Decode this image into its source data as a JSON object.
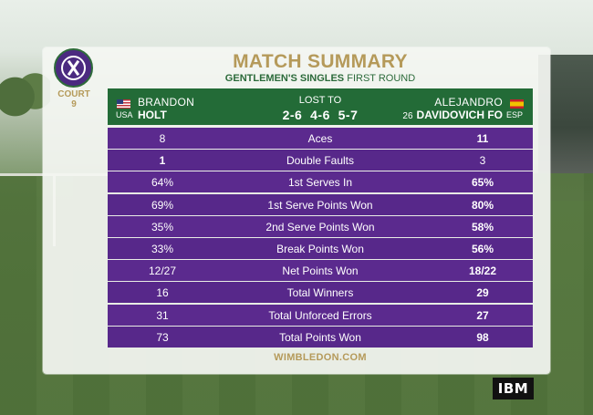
{
  "court": {
    "line1": "COURT",
    "line2": "9"
  },
  "title": "MATCH SUMMARY",
  "subtitle": {
    "event": "GENTLEMEN'S SINGLES",
    "round": "FIRST ROUND"
  },
  "players": {
    "left": {
      "first": "BRANDON",
      "last": "HOLT",
      "country": "USA",
      "flag": "usa-flag-icon"
    },
    "right": {
      "first": "ALEJANDRO",
      "seed": "26",
      "last": "DAVIDOVICH FO",
      "country": "ESP",
      "flag": "spain-flag-icon"
    }
  },
  "result": {
    "label": "LOST TO",
    "score": "2-6  4-6  5-7"
  },
  "stats": [
    {
      "label": "Aces",
      "left": "8",
      "right": "11",
      "left_bold": false,
      "right_bold": true
    },
    {
      "label": "Double Faults",
      "left": "1",
      "right": "3",
      "left_bold": true,
      "right_bold": false
    },
    {
      "label": "1st Serves In",
      "left": "64%",
      "right": "65%",
      "left_bold": false,
      "right_bold": true
    },
    {
      "label": "1st Serve Points Won",
      "left": "69%",
      "right": "80%",
      "left_bold": false,
      "right_bold": true
    },
    {
      "label": "2nd Serve Points Won",
      "left": "35%",
      "right": "58%",
      "left_bold": false,
      "right_bold": true
    },
    {
      "label": "Break Points Won",
      "left": "33%",
      "right": "56%",
      "left_bold": false,
      "right_bold": true
    },
    {
      "label": "Net Points Won",
      "left": "12/27",
      "right": "18/22",
      "left_bold": false,
      "right_bold": true
    },
    {
      "label": "Total Winners",
      "left": "16",
      "right": "29",
      "left_bold": false,
      "right_bold": true
    },
    {
      "label": "Total Unforced Errors",
      "left": "31",
      "right": "27",
      "left_bold": false,
      "right_bold": true
    },
    {
      "label": "Total Points Won",
      "left": "73",
      "right": "98",
      "left_bold": false,
      "right_bold": true
    }
  ],
  "footer": "WIMBLEDON.COM",
  "sponsor": "IBM",
  "colors": {
    "purple": "#5b2a8e",
    "green": "#236b37",
    "gold": "#b59a5a"
  }
}
